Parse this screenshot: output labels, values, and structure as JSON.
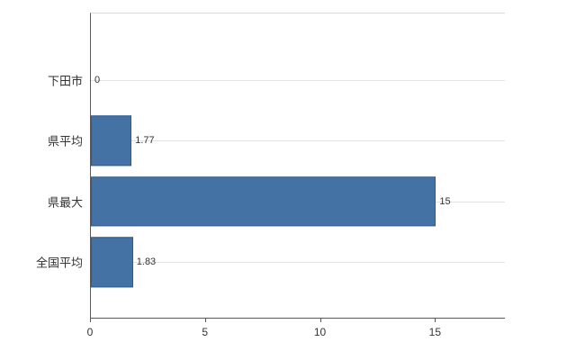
{
  "chart_data": {
    "type": "bar",
    "orientation": "horizontal",
    "title": "",
    "xlabel": "",
    "ylabel": "",
    "categories": [
      "下田市",
      "県平均",
      "県最大",
      "全国平均"
    ],
    "values": [
      0,
      1.77,
      15,
      1.83
    ],
    "value_labels": [
      "0",
      "1.77",
      "15",
      "1.83"
    ],
    "x_ticks": [
      0,
      5,
      10,
      15
    ],
    "x_tick_labels": [
      "0",
      "5",
      "10",
      "15"
    ],
    "xlim": [
      0,
      18
    ],
    "bar_color": "#4472a4",
    "bar_border_color": "#315a8c",
    "grid": "horizontal",
    "gridline_color": "#e2e2e2",
    "axis_color": "#595959",
    "legend": "none"
  }
}
